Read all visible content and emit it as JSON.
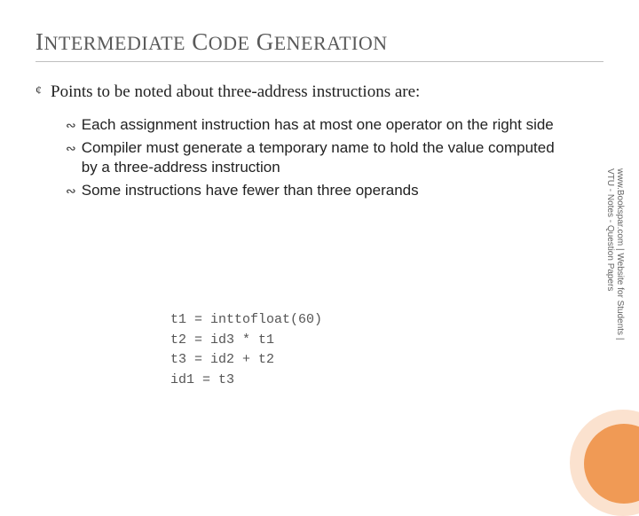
{
  "title_html": "I<span style=\"font-size:22px\">NTERMEDIATE</span> C<span style=\"font-size:22px\">ODE</span> G<span style=\"font-size:22px\">ENERATION</span>",
  "title_plain": "Intermediate Code Generation",
  "colors": {
    "title_text": "#595959",
    "title_underline": "#bfbfbf",
    "body_text": "#222222",
    "code_text": "#555555",
    "side_text": "#666666",
    "circle_outer": "#fbe2cf",
    "circle_inner": "#f09a55",
    "background": "#ffffff"
  },
  "typography": {
    "title_font": "Georgia serif small-caps",
    "title_size_pt": 27,
    "body_size_pt": 19,
    "sub_size_pt": 17,
    "code_size_pt": 15,
    "side_size_pt": 10
  },
  "main_point": "Points to be noted about three-address instructions are:",
  "sub_points": [
    "Each assignment instruction has at most one operator on the right side",
    "Compiler must generate a temporary name to hold the value computed by a three-address instruction",
    "Some instructions have fewer than three operands"
  ],
  "code_lines": [
    "t1 = inttofloat(60)",
    "t2 = id3 * t1",
    "t3 = id2 + t2",
    "id1 = t3"
  ],
  "side_text_line1": "www.Bookspar.com | Website for Students |",
  "side_text_line2": "VTU - Notes - Question Papers",
  "bullets": {
    "level1_glyph": "¢",
    "level2_glyph": "∾"
  }
}
